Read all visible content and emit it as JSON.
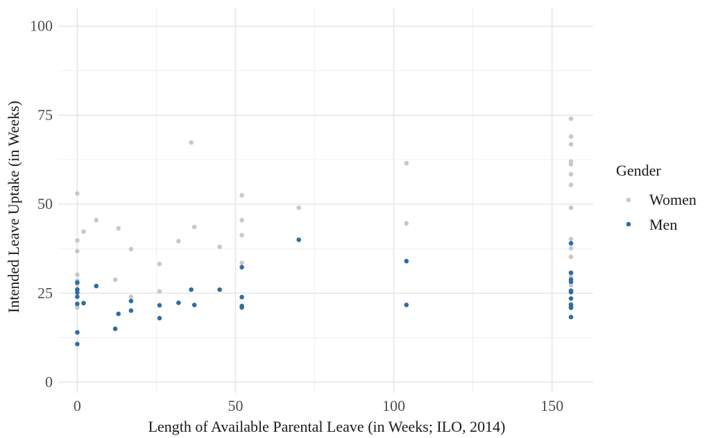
{
  "chart_data": {
    "type": "scatter",
    "xlabel": "Length of Available Parental Leave (in Weeks; ILO, 2014)",
    "ylabel": "Intended Leave Uptake (in Weeks)",
    "xlim": [
      -6,
      163
    ],
    "ylim": [
      -3,
      105
    ],
    "x_ticks": [
      0,
      50,
      100,
      150
    ],
    "y_ticks": [
      0,
      25,
      50,
      75,
      100
    ],
    "grid": true,
    "legend": {
      "title": "Gender",
      "position": "right"
    },
    "series": [
      {
        "name": "Women",
        "color": "#c8c8c8",
        "points": [
          [
            0,
            53
          ],
          [
            0,
            39.8
          ],
          [
            0,
            36.8
          ],
          [
            0,
            30.2
          ],
          [
            0,
            28.5
          ],
          [
            0,
            27.5
          ],
          [
            0,
            26.2
          ],
          [
            0,
            21
          ],
          [
            2,
            42.3
          ],
          [
            6,
            45.5
          ],
          [
            12,
            28.8
          ],
          [
            13,
            43.2
          ],
          [
            17,
            37.4
          ],
          [
            17,
            24
          ],
          [
            26,
            33.2
          ],
          [
            26,
            25.5
          ],
          [
            32,
            39.6
          ],
          [
            36,
            67.3
          ],
          [
            37,
            43.6
          ],
          [
            45,
            38
          ],
          [
            52,
            52.5
          ],
          [
            52,
            45.5
          ],
          [
            52,
            41.3
          ],
          [
            52,
            33.5
          ],
          [
            70,
            49
          ],
          [
            104,
            61.5
          ],
          [
            104,
            44.6
          ],
          [
            156,
            74
          ],
          [
            156,
            69
          ],
          [
            156,
            66.8
          ],
          [
            156,
            62
          ],
          [
            156,
            61.2
          ],
          [
            156,
            58.4
          ],
          [
            156,
            55.4
          ],
          [
            156,
            49
          ],
          [
            156,
            40.2
          ],
          [
            156,
            37.6
          ],
          [
            156,
            35.2
          ],
          [
            156,
            30.8
          ],
          [
            156,
            29.5
          ],
          [
            156,
            27.2
          ]
        ]
      },
      {
        "name": "Men",
        "color": "#2e6da4",
        "points": [
          [
            0,
            28
          ],
          [
            0,
            26
          ],
          [
            0,
            25.2
          ],
          [
            0,
            24
          ],
          [
            0,
            22
          ],
          [
            0,
            14
          ],
          [
            0,
            10.7
          ],
          [
            2,
            22.2
          ],
          [
            6,
            27
          ],
          [
            12,
            15
          ],
          [
            13,
            19.2
          ],
          [
            17,
            22.8
          ],
          [
            17,
            20.1
          ],
          [
            26,
            21.6
          ],
          [
            26,
            18
          ],
          [
            32,
            22.3
          ],
          [
            36,
            26
          ],
          [
            37,
            21.7
          ],
          [
            45,
            26
          ],
          [
            52,
            32.3
          ],
          [
            52,
            23.9
          ],
          [
            52,
            21.4
          ],
          [
            52,
            21
          ],
          [
            70,
            40
          ],
          [
            104,
            34
          ],
          [
            104,
            21.7
          ],
          [
            156,
            39
          ],
          [
            156,
            30.7
          ],
          [
            156,
            28.8
          ],
          [
            156,
            28.2
          ],
          [
            156,
            25.7
          ],
          [
            156,
            25.3
          ],
          [
            156,
            23.5
          ],
          [
            156,
            21.8
          ],
          [
            156,
            21.2
          ],
          [
            156,
            20.9
          ],
          [
            156,
            18.3
          ]
        ]
      }
    ]
  }
}
